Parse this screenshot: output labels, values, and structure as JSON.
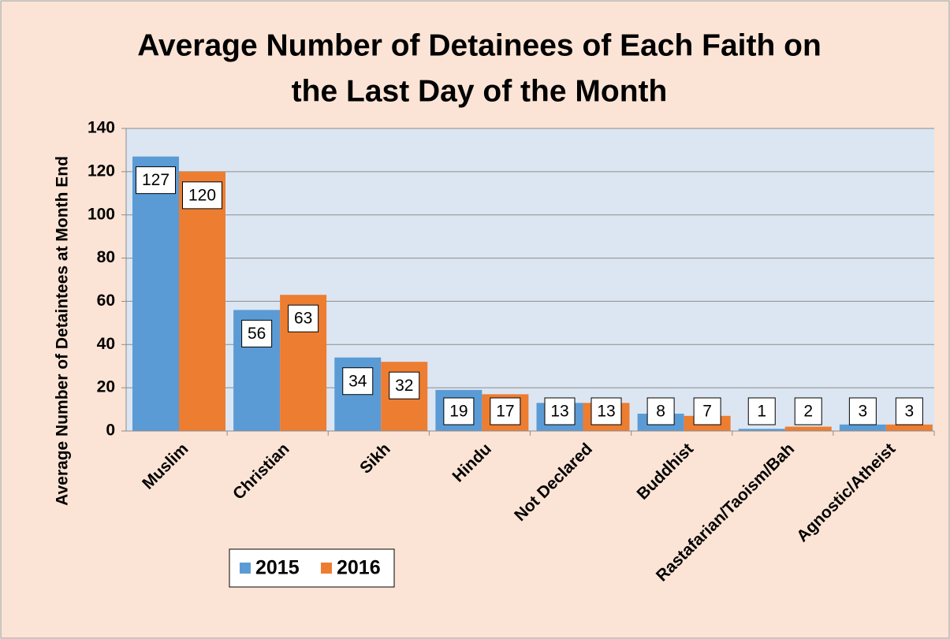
{
  "chart_data": {
    "type": "bar",
    "title": [
      "Average Number of Detainees of Each Faith on",
      "the Last Day of the Month"
    ],
    "y_label": "Average Number of Detaintees at Month End",
    "categories": [
      "Muslim",
      "Christian",
      "Sikh",
      "Hindu",
      "Not Declared",
      "Buddhist",
      "Rastafarian/Taoism/Bah",
      "Agnostic/Atheist"
    ],
    "series": [
      {
        "name": "2015",
        "color": "#5b9bd5",
        "values": [
          127,
          56,
          34,
          19,
          13,
          8,
          1,
          3
        ]
      },
      {
        "name": "2016",
        "color": "#ed7d31",
        "values": [
          120,
          63,
          32,
          17,
          13,
          7,
          2,
          3
        ]
      }
    ],
    "ylim": [
      0,
      140
    ],
    "yticks": [
      0,
      20,
      40,
      60,
      80,
      100,
      120,
      140
    ],
    "grid": true
  }
}
